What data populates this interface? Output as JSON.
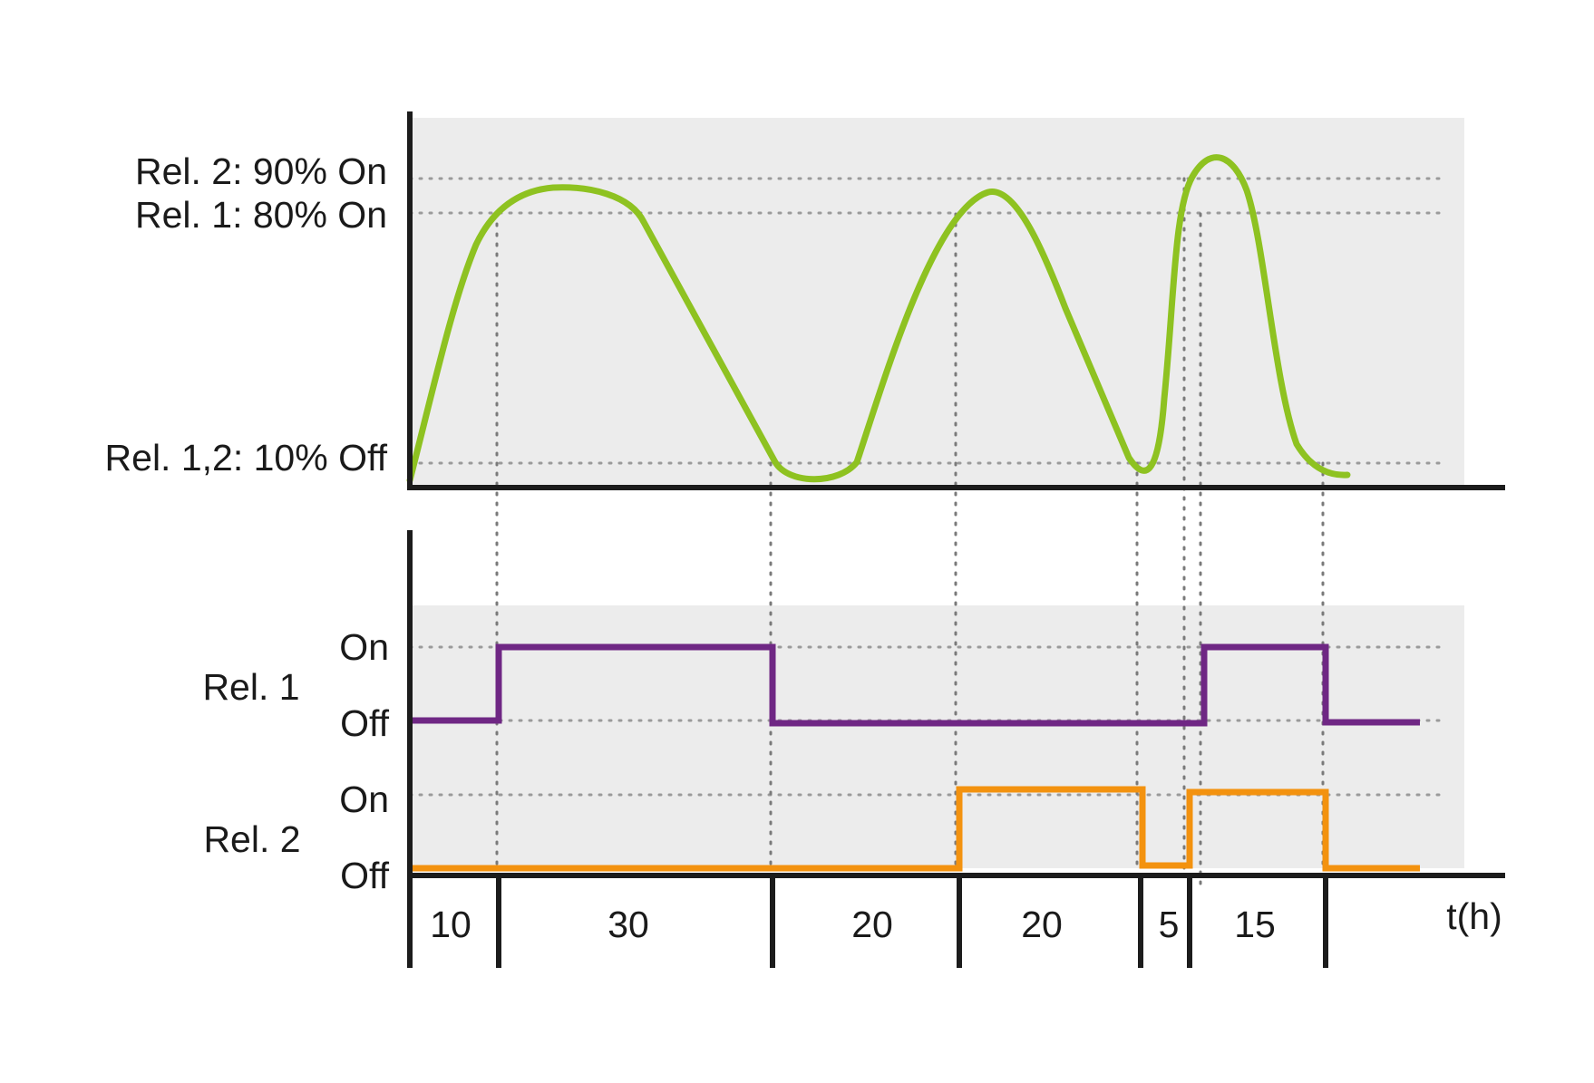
{
  "colors": {
    "panel_bg": "#ececec",
    "axis": "#1c1c1c",
    "grid": "#9a9a9a",
    "humidity_curve": "#8ec221",
    "relay1": "#6f2784",
    "relay2": "#f3920f"
  },
  "upper_plot": {
    "threshold_labels": {
      "rel2_on": "Rel. 2: 90% On",
      "rel1_on": "Rel. 1: 80% On",
      "off": "Rel. 1,2: 10% Off"
    }
  },
  "lower_plot": {
    "relay1": {
      "name": "Rel. 1",
      "on_label": "On",
      "off_label": "Off"
    },
    "relay2": {
      "name": "Rel. 2",
      "on_label": "On",
      "off_label": "Off"
    }
  },
  "time_axis": {
    "unit_label": "t(h)",
    "segments": [
      "10",
      "30",
      "20",
      "20",
      "5",
      "15"
    ]
  },
  "chart_data": {
    "type": "line",
    "x_unit": "t(h)",
    "segments_h": [
      10,
      30,
      20,
      20,
      5,
      15
    ],
    "thresholds_percent": {
      "rel2_on": 90,
      "rel1_on": 80,
      "off": 10
    },
    "relay1_states": [
      "Off",
      "On",
      "Off",
      "Off",
      "Off",
      "On",
      "Off"
    ],
    "relay2_states": [
      "Off",
      "Off",
      "Off",
      "On",
      "Off",
      "On",
      "Off"
    ]
  }
}
